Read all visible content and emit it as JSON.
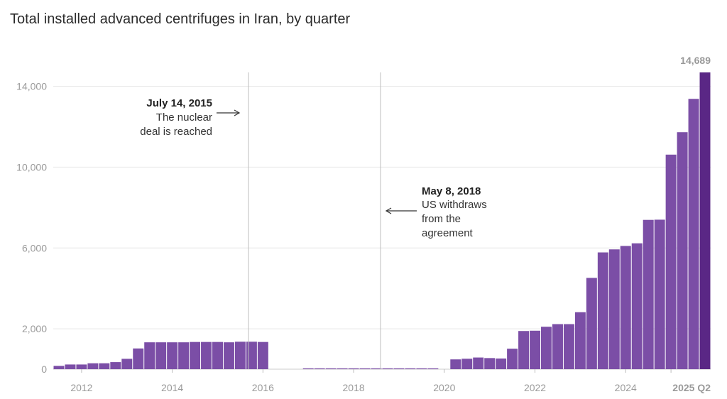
{
  "chart_data": {
    "type": "bar",
    "title": "Total installed advanced centrifuges in Iran, by quarter",
    "xlabel": "",
    "ylabel": "",
    "ylim": [
      0,
      14689
    ],
    "yticks": [
      {
        "value": 0,
        "label": "0"
      },
      {
        "value": 2000,
        "label": "2,000"
      },
      {
        "value": 6000,
        "label": "6,000"
      },
      {
        "value": 10000,
        "label": "10,000"
      },
      {
        "value": 14000,
        "label": "14,000"
      }
    ],
    "xticks": [
      {
        "index": 2.5,
        "label": "2012"
      },
      {
        "index": 10.5,
        "label": "2014"
      },
      {
        "index": 18.5,
        "label": "2016"
      },
      {
        "index": 26.5,
        "label": "2018"
      },
      {
        "index": 34.5,
        "label": "2020"
      },
      {
        "index": 42.5,
        "label": "2022"
      },
      {
        "index": 50.5,
        "label": "2024"
      },
      {
        "index": 54.5,
        "label": "2025 Q2",
        "final": true
      }
    ],
    "values": [
      164,
      232,
      232,
      293,
      293,
      349,
      513,
      1026,
      1330,
      1330,
      1330,
      1330,
      1347,
      1347,
      1347,
      1330,
      1359,
      1359,
      1347,
      0,
      0,
      0,
      40,
      40,
      40,
      40,
      40,
      40,
      40,
      40,
      40,
      40,
      40,
      40,
      0,
      485,
      516,
      578,
      550,
      528,
      1014,
      1890,
      1905,
      2100,
      2230,
      2230,
      2820,
      4518,
      5780,
      5930,
      6100,
      6230,
      7390,
      7400,
      10620,
      11730,
      13380,
      14689
    ],
    "highlight_color": "#5a2785",
    "bar_color": "#7b4ea6",
    "final_value_label": "14,689",
    "annotations": [
      {
        "index": 16.5,
        "date": "July 14, 2015",
        "lines": [
          "The nuclear",
          "deal is reached"
        ]
      },
      {
        "index": 27.7,
        "date": "May 8, 2018",
        "lines": [
          "US withdraws",
          "from the",
          "agreement"
        ]
      }
    ]
  }
}
